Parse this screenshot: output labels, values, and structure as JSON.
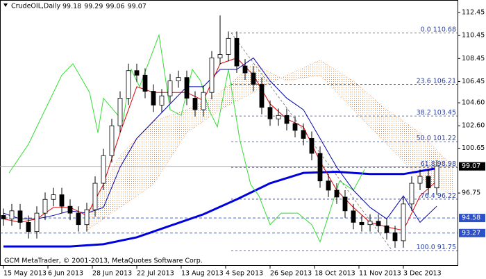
{
  "chart_data": {
    "type": "candlestick",
    "symbol": "CrudeOIL,Daily",
    "ohlc": [
      99.18,
      99.29,
      99.06,
      99.07
    ],
    "footer": "GCM MetaTrader, © 2001-2013, MetaQuotes Software Corp.",
    "xlim": [
      -1.25,
      163.75
    ],
    "ylim": [
      90.42,
      113.54
    ],
    "yticks": [
      112.45,
      110.45,
      108.45,
      106.45,
      {
        "value": 104.6,
        "label": "104.60"
      },
      {
        "value": 102.6,
        "label": "102.60"
      },
      100.65,
      96.75
    ],
    "xticks": [
      {
        "value": 0,
        "label": "15 May 2013"
      },
      {
        "value": 16,
        "label": "6 Jun 2013"
      },
      {
        "value": 32,
        "label": "28 Jun 2013"
      },
      {
        "value": 48,
        "label": "22 Jul 2013"
      },
      {
        "value": 64,
        "label": "13 Aug 2013"
      },
      {
        "value": 80,
        "label": "4 Sep 2013"
      },
      {
        "value": 96,
        "label": "26 Sep 2013"
      },
      {
        "value": 112,
        "label": "18 Oct 2013"
      },
      {
        "value": 128,
        "label": "11 Nov 2013"
      },
      {
        "value": 144,
        "label": "3 Dec 2013"
      }
    ],
    "x": [
      0,
      3,
      6,
      9,
      12,
      15,
      18,
      21,
      24,
      27,
      30,
      33,
      36,
      39,
      42,
      45,
      48,
      51,
      54,
      57,
      60,
      63,
      66,
      69,
      72,
      75,
      78,
      81,
      84,
      87,
      90,
      93,
      96,
      99,
      102,
      105,
      108,
      111,
      114,
      117,
      120,
      123,
      126,
      129,
      132,
      135,
      138,
      141,
      144,
      147,
      150,
      153,
      156
    ],
    "open": [
      94.8,
      94.5,
      95.2,
      94.2,
      93.4,
      95.0,
      96.2,
      96.6,
      95.6,
      95.0,
      94.0,
      95.3,
      97.6,
      100.0,
      102.6,
      105.0,
      107.4,
      107.0,
      105.6,
      104.4,
      105.2,
      106.5,
      106.8,
      105.0,
      104.0,
      105.5,
      108.5,
      108.8,
      110.2,
      107.8,
      107.2,
      106.2,
      104.2,
      103.2,
      103.5,
      102.8,
      102.2,
      101.5,
      100.2,
      97.8,
      97.0,
      96.4,
      95.2,
      94.2,
      94.0,
      94.3,
      93.9,
      93.3,
      92.6,
      95.8,
      97.6,
      98.2,
      97.2
    ],
    "high": [
      95.4,
      95.8,
      95.8,
      94.8,
      95.6,
      96.8,
      97.2,
      97.2,
      96.2,
      95.6,
      95.9,
      98.2,
      100.6,
      103.2,
      105.6,
      108.0,
      108.0,
      107.6,
      106.2,
      105.8,
      107.1,
      107.4,
      107.4,
      105.6,
      106.1,
      109.1,
      112.2,
      110.8,
      110.8,
      108.4,
      107.8,
      106.8,
      104.8,
      104.1,
      104.1,
      103.4,
      102.8,
      102.1,
      100.8,
      98.4,
      97.6,
      97.0,
      95.8,
      94.8,
      94.9,
      94.9,
      94.5,
      93.9,
      96.4,
      98.2,
      98.8,
      98.8,
      99.6
    ],
    "low": [
      93.9,
      93.9,
      93.6,
      92.8,
      92.8,
      94.4,
      95.6,
      95.0,
      94.4,
      93.4,
      93.4,
      94.7,
      97.0,
      99.4,
      102.0,
      104.4,
      106.4,
      105.0,
      103.8,
      103.8,
      104.6,
      105.9,
      104.4,
      103.4,
      103.4,
      104.9,
      107.9,
      108.2,
      107.2,
      106.6,
      105.6,
      103.6,
      102.6,
      102.6,
      102.2,
      101.6,
      100.9,
      99.6,
      97.2,
      96.4,
      95.8,
      94.6,
      93.6,
      93.4,
      93.4,
      93.3,
      92.7,
      92.0,
      92.0,
      95.2,
      97.0,
      96.6,
      96.6
    ],
    "close": [
      94.5,
      95.2,
      94.2,
      93.4,
      95.0,
      96.2,
      96.6,
      95.6,
      95.0,
      94.0,
      95.3,
      97.6,
      100.0,
      102.6,
      105.0,
      107.4,
      107.0,
      105.6,
      104.4,
      105.2,
      106.5,
      106.8,
      105.0,
      104.0,
      105.5,
      108.5,
      108.8,
      110.2,
      107.8,
      107.2,
      106.2,
      104.2,
      103.2,
      103.5,
      102.8,
      102.2,
      101.5,
      100.2,
      97.8,
      97.0,
      96.4,
      95.2,
      94.2,
      94.0,
      94.3,
      93.9,
      93.3,
      92.6,
      95.8,
      97.6,
      98.2,
      97.2,
      99.1
    ],
    "up_color": "#ffffff",
    "down_color": "#000000",
    "cloud": {
      "color": "#e0955a",
      "x": [
        30,
        42,
        54,
        66,
        78,
        90,
        102,
        114,
        126,
        138,
        150,
        162
      ],
      "span_a": [
        93.5,
        95.5,
        97.5,
        102,
        104,
        105.5,
        107,
        108.3,
        106.5,
        104,
        102,
        99
      ],
      "span_b": [
        95,
        100,
        103,
        104,
        105.5,
        108,
        106.5,
        107,
        104,
        101,
        98,
        96.5
      ]
    },
    "lines": [
      {
        "color": "#0000dd",
        "width": 3,
        "x": [
          0,
          12,
          24,
          36,
          48,
          60,
          72,
          84,
          96,
          108,
          120,
          132,
          144,
          156
        ],
        "values": [
          92.1,
          92.1,
          92.1,
          92.3,
          92.9,
          93.9,
          94.9,
          96.2,
          97.6,
          98.5,
          98.6,
          98.4,
          98.4,
          98.9
        ]
      },
      {
        "color": "#33dd33",
        "width": 1,
        "x": [
          2,
          9,
          21,
          25,
          31,
          34,
          36,
          43,
          46,
          49,
          56,
          60,
          64,
          68,
          71,
          74,
          77,
          81,
          85,
          89,
          92,
          96,
          100,
          106,
          111,
          114,
          116,
          121,
          126,
          130
        ],
        "values": [
          98.5,
          101,
          107,
          108,
          105.5,
          102,
          105,
          103,
          107.5,
          106,
          110.5,
          104,
          103.5,
          107.5,
          106.5,
          104,
          102.5,
          107.5,
          101.5,
          97.5,
          96.5,
          94,
          95,
          95,
          94,
          92.5,
          94,
          97.8,
          97,
          98.8
        ]
      },
      {
        "color": "#0000aa",
        "width": 1,
        "x": [
          0,
          6,
          12,
          18,
          24,
          30,
          36,
          42,
          48,
          54,
          60,
          66,
          72,
          78,
          84,
          90,
          96,
          102,
          108,
          114,
          120,
          126,
          132,
          138,
          144,
          150,
          156
        ],
        "values": [
          95,
          94.5,
          94.5,
          94.8,
          95.2,
          95,
          95.5,
          99,
          101.5,
          103,
          104.5,
          106,
          106,
          107.5,
          107.5,
          108.5,
          106.5,
          105,
          104,
          101.5,
          99,
          97,
          95.5,
          94.5,
          96.5,
          94.2,
          95.6
        ]
      },
      {
        "color": "#dd0000",
        "width": 1,
        "x": [
          0,
          6,
          12,
          18,
          24,
          30,
          36,
          42,
          48,
          54,
          60,
          66,
          72,
          78,
          84,
          90,
          96,
          102,
          108,
          114,
          120,
          126,
          132,
          138,
          144,
          150,
          156
        ],
        "values": [
          94.5,
          94.2,
          94.5,
          95.5,
          95.5,
          94.8,
          97.5,
          102,
          106,
          105.5,
          105.5,
          105.5,
          104.8,
          108,
          108.5,
          107,
          104.5,
          103.2,
          102.5,
          99.5,
          97,
          95.5,
          94.2,
          93.8,
          93.5,
          96.5,
          97.8
        ]
      }
    ],
    "fibo": {
      "color": "#2a3f9a",
      "x": [
        82,
        140
      ],
      "levels": [
        {
          "ratio": "0.0",
          "value": 110.68
        },
        {
          "ratio": "23.6",
          "value": 106.21
        },
        {
          "ratio": "38.2",
          "value": 103.45
        },
        {
          "ratio": "50.0",
          "value": 101.22
        },
        {
          "ratio": "61.8",
          "value": 98.98
        },
        {
          "ratio": "76.4",
          "value": 96.22
        },
        {
          "ratio": "100.0",
          "value": 91.75
        }
      ]
    },
    "price_lines": [
      {
        "value": 99.07,
        "color": "#000000",
        "line_color": "#a0a0a0"
      },
      {
        "value": 94.58,
        "color": "#2c50c8",
        "line_color": "#2c50c8"
      },
      {
        "value": 93.27,
        "color": "#2c50c8",
        "line_color": "#2c50c8"
      }
    ]
  }
}
